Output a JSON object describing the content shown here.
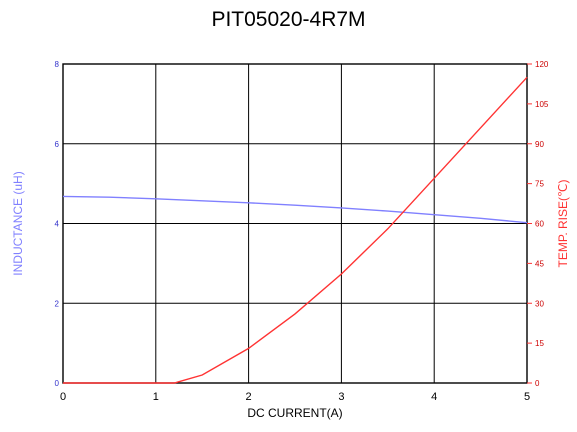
{
  "chart_data": {
    "type": "line",
    "title": "PIT05020-4R7M",
    "xlabel": "DC CURRENT(A)",
    "ylabel_left": "INDUCTANCE (uH)",
    "ylabel_right": "TEMP. RISE(℃)",
    "xlim": [
      0,
      5
    ],
    "ylim_left": [
      0,
      8
    ],
    "ylim_right": [
      0,
      120
    ],
    "x_ticks": [
      "0",
      "1",
      "2",
      "3",
      "4",
      "5"
    ],
    "y_left_ticks": [
      "0",
      "2",
      "4",
      "6",
      "8"
    ],
    "y_right_ticks": [
      "0",
      "15",
      "30",
      "45",
      "60",
      "75",
      "90",
      "105",
      "120"
    ],
    "grid": true,
    "colors": {
      "inductance": "#8080ff",
      "temp_rise": "#ff3333",
      "left_axis": "#8080ff",
      "right_axis": "#ff3333"
    },
    "series": [
      {
        "axis": "left",
        "x": [
          0,
          0.5,
          1,
          1.5,
          2,
          2.5,
          3,
          3.5,
          4,
          4.5,
          5
        ],
        "values": [
          4.68,
          4.66,
          4.62,
          4.57,
          4.52,
          4.46,
          4.39,
          4.31,
          4.22,
          4.13,
          4.02
        ]
      },
      {
        "axis": "right",
        "x": [
          0,
          0.5,
          1,
          1.2,
          1.5,
          2,
          2.5,
          3,
          3.5,
          4,
          4.5,
          5
        ],
        "values": [
          0,
          0,
          0,
          0,
          3,
          13,
          26,
          41,
          58,
          77,
          96,
          115
        ]
      }
    ]
  }
}
